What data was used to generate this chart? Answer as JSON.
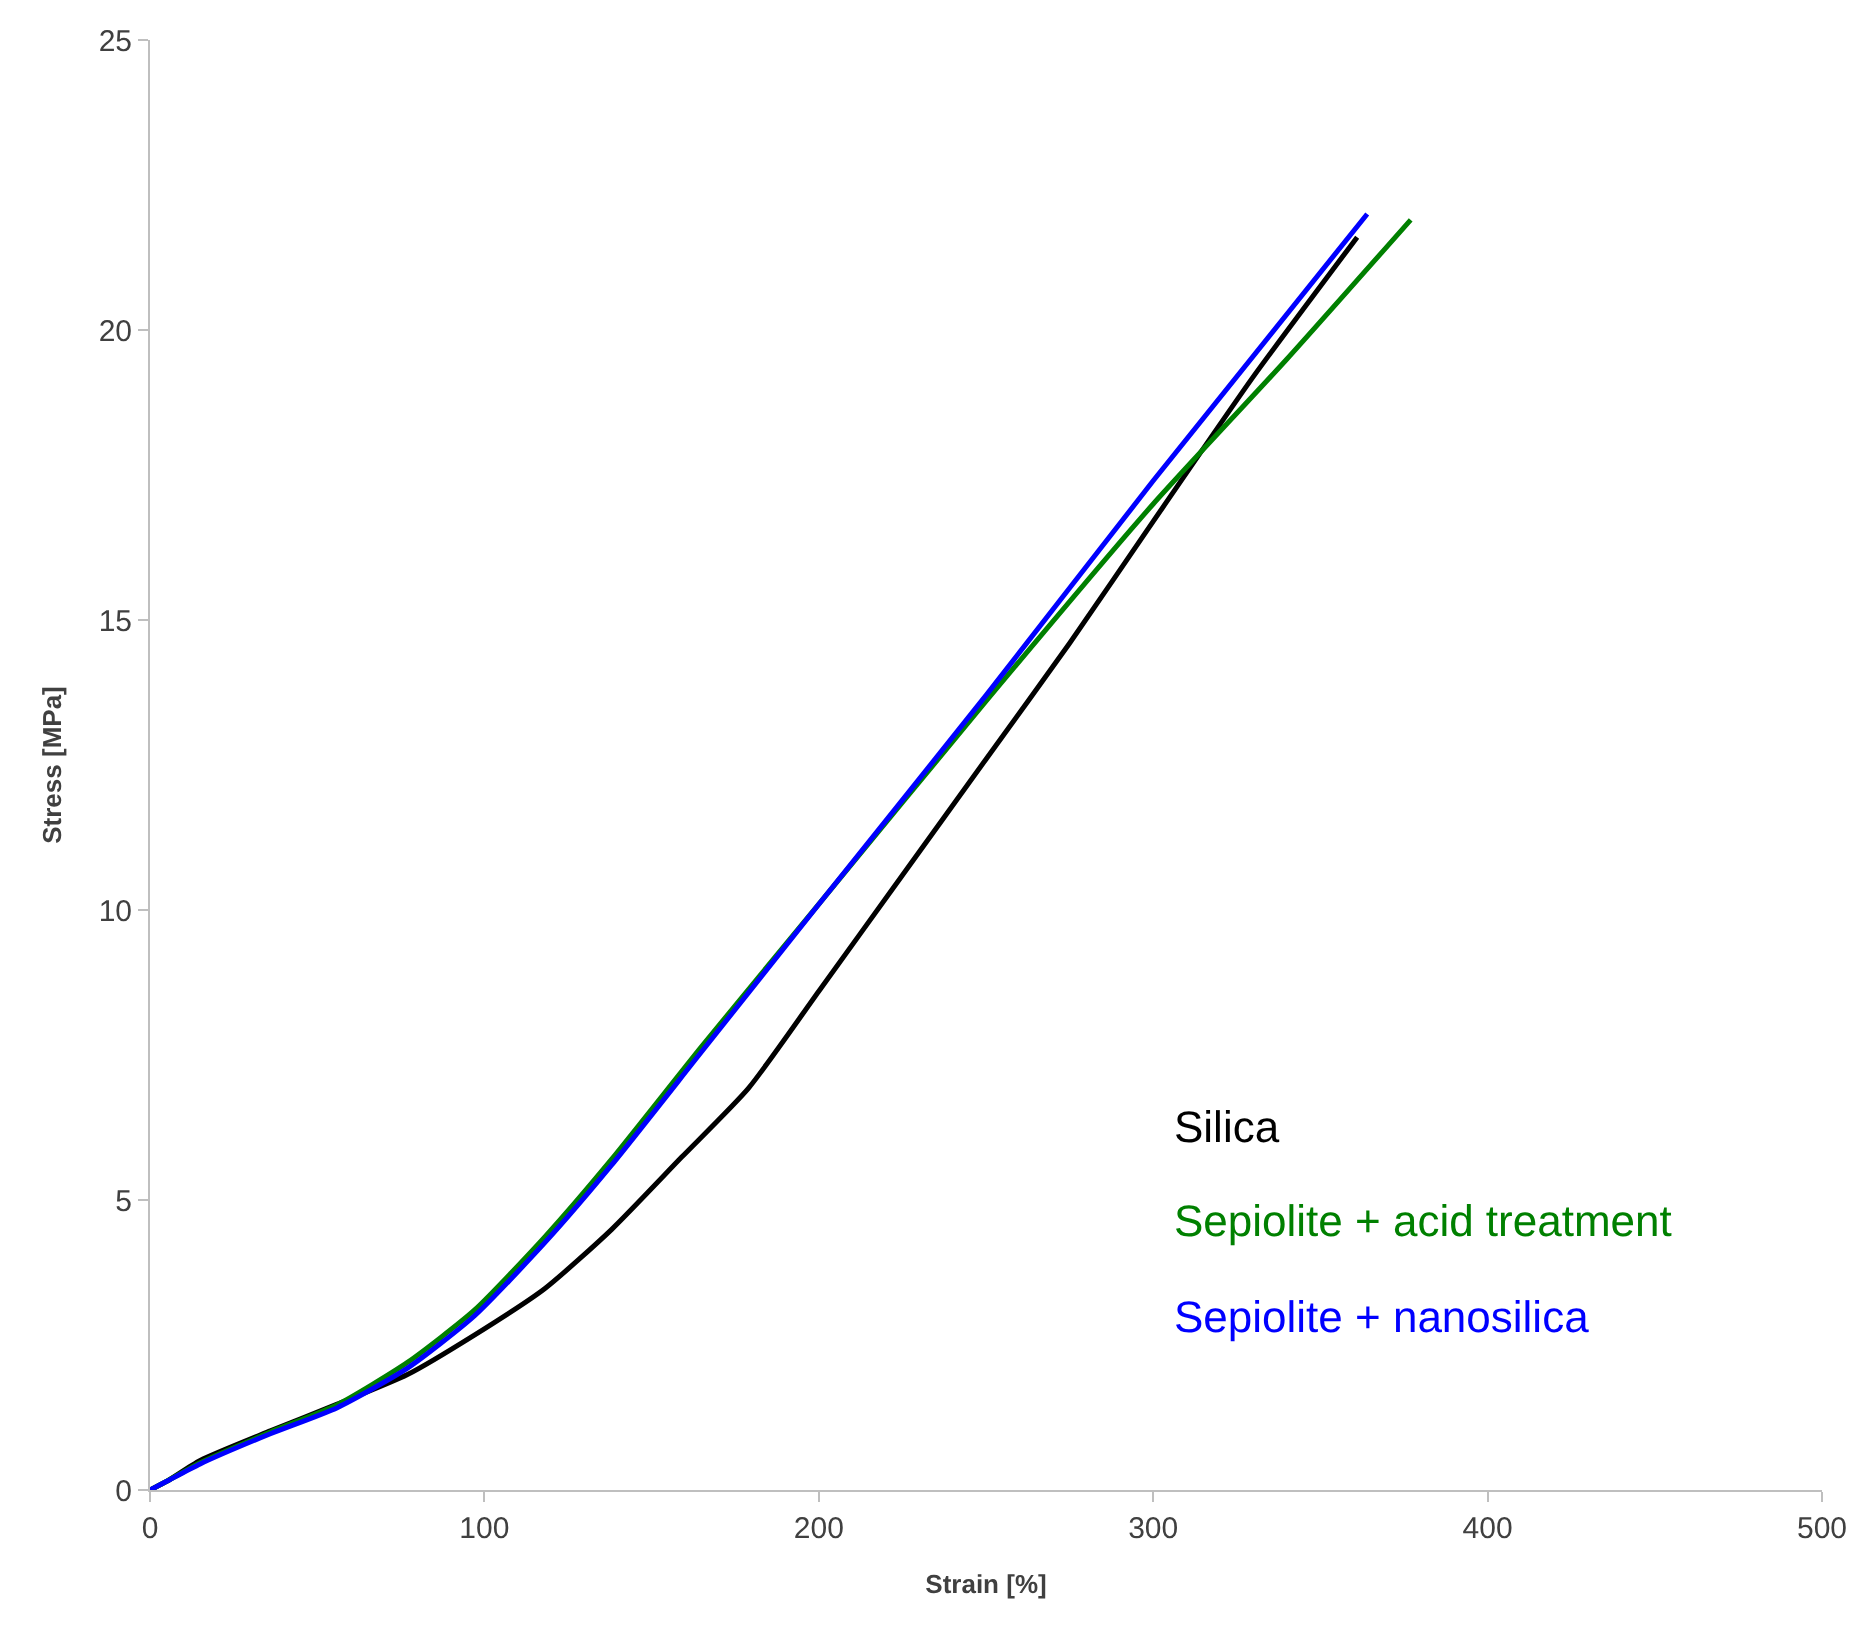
{
  "chart_data": {
    "type": "line",
    "xlabel": "Strain [%]",
    "ylabel": "Stress [MPa]",
    "xlim": [
      0,
      500
    ],
    "xticks": [
      0,
      100,
      200,
      300,
      400,
      500
    ],
    "ylim": [
      0,
      25
    ],
    "yticks": [
      0,
      5,
      10,
      15,
      20,
      25
    ],
    "series": [
      {
        "name": "Silica",
        "color": "#000000",
        "x": [
          0,
          5,
          15,
          36,
          56,
          77,
          97,
          118,
          138,
          159,
          179,
          200,
          225,
          250,
          275,
          300,
          330,
          361
        ],
        "values": [
          0,
          0.15,
          0.51,
          1.02,
          1.48,
          1.99,
          2.67,
          3.47,
          4.49,
          5.74,
          6.93,
          8.6,
          10.6,
          12.6,
          14.6,
          16.7,
          19.2,
          21.6
        ]
      },
      {
        "name": "Sepiolite + acid treatment",
        "color": "#008000",
        "x": [
          0,
          5,
          15,
          36,
          56,
          77,
          97,
          118,
          138,
          165,
          200,
          250,
          300,
          340,
          377
        ],
        "values": [
          0,
          0.15,
          0.47,
          1.0,
          1.47,
          2.2,
          3.1,
          4.36,
          5.7,
          7.65,
          10.1,
          13.6,
          17.0,
          19.5,
          21.9
        ]
      },
      {
        "name": "Sepiolite + nanosilica",
        "color": "#0000ff",
        "x": [
          0,
          5,
          15,
          36,
          56,
          77,
          97,
          118,
          138,
          165,
          200,
          250,
          300,
          364
        ],
        "values": [
          0,
          0.15,
          0.45,
          0.97,
          1.42,
          2.1,
          3.0,
          4.26,
          5.6,
          7.56,
          10.1,
          13.7,
          17.4,
          22.0
        ]
      }
    ]
  }
}
